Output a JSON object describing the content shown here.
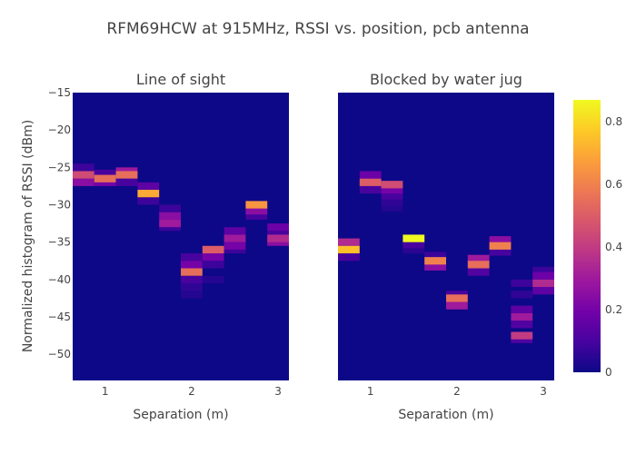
{
  "title": "RFM69HCW at 915MHz, RSSI vs. position, pcb antenna",
  "chart_data": {
    "type": "heatmap",
    "title": "RFM69HCW at 915MHz, RSSI vs. position, pcb antenna",
    "ylabel": "Normalized histogram of RSSI (dBm)",
    "y_ticks": [
      -15,
      -20,
      -25,
      -30,
      -35,
      -40,
      -45,
      -50
    ],
    "ylim": [
      -53.5,
      -15
    ],
    "colorbar": {
      "ticks": [
        "0",
        "0.2",
        "0.4",
        "0.6",
        "0.8"
      ],
      "range": [
        0,
        0.87
      ],
      "colorscale": "Plasma"
    },
    "panels": [
      {
        "subtitle": "Line of sight",
        "xlabel": "Separation (m)",
        "x_ticks": [
          "1",
          "2",
          "3"
        ],
        "xlim": [
          0.625,
          3.125
        ],
        "columns": [
          {
            "x": 0.75,
            "bins": [
              [
                -26,
                0.45
              ],
              [
                -27,
                0.25
              ],
              [
                -25,
                0.08
              ]
            ]
          },
          {
            "x": 1.0,
            "bins": [
              [
                -26.5,
                0.55
              ],
              [
                -27,
                0.2
              ],
              [
                -25.8,
                0.1
              ]
            ]
          },
          {
            "x": 1.25,
            "bins": [
              [
                -26,
                0.55
              ],
              [
                -25.5,
                0.3
              ],
              [
                -27,
                0.1
              ]
            ]
          },
          {
            "x": 1.5,
            "bins": [
              [
                -28.5,
                0.7
              ],
              [
                -27.5,
                0.15
              ],
              [
                -29.5,
                0.08
              ]
            ]
          },
          {
            "x": 1.75,
            "bins": [
              [
                -31.5,
                0.25
              ],
              [
                -32.5,
                0.3
              ],
              [
                -30.5,
                0.08
              ],
              [
                -33,
                0.08
              ]
            ]
          },
          {
            "x": 2.0,
            "bins": [
              [
                -39,
                0.55
              ],
              [
                -38,
                0.2
              ],
              [
                -37,
                0.1
              ],
              [
                -40,
                0.1
              ],
              [
                -41,
                0.06
              ],
              [
                -42,
                0.04
              ]
            ]
          },
          {
            "x": 2.25,
            "bins": [
              [
                -36,
                0.5
              ],
              [
                -37,
                0.2
              ],
              [
                -38,
                0.08
              ],
              [
                -40,
                0.04
              ]
            ]
          },
          {
            "x": 2.5,
            "bins": [
              [
                -34.5,
                0.3
              ],
              [
                -33.5,
                0.15
              ],
              [
                -35.5,
                0.2
              ],
              [
                -36,
                0.08
              ]
            ]
          },
          {
            "x": 2.75,
            "bins": [
              [
                -30,
                0.65
              ],
              [
                -30.8,
                0.25
              ],
              [
                -31.5,
                0.1
              ]
            ]
          },
          {
            "x": 3.0,
            "bins": [
              [
                -34.5,
                0.35
              ],
              [
                -33,
                0.18
              ],
              [
                -34,
                0.1
              ],
              [
                -35,
                0.25
              ]
            ]
          }
        ]
      },
      {
        "subtitle": "Blocked by water jug",
        "xlabel": "Separation (m)",
        "x_ticks": [
          "1",
          "2",
          "3"
        ],
        "xlim": [
          0.625,
          3.125
        ],
        "columns": [
          {
            "x": 0.75,
            "bins": [
              [
                -36,
                0.75
              ],
              [
                -35,
                0.35
              ],
              [
                -37,
                0.1
              ]
            ]
          },
          {
            "x": 1.0,
            "bins": [
              [
                -27,
                0.5
              ],
              [
                -26,
                0.18
              ],
              [
                -28,
                0.1
              ]
            ]
          },
          {
            "x": 1.25,
            "bins": [
              [
                -27.3,
                0.45
              ],
              [
                -28,
                0.2
              ],
              [
                -28.8,
                0.1
              ],
              [
                -29.6,
                0.06
              ],
              [
                -30.4,
                0.04
              ]
            ]
          },
          {
            "x": 1.5,
            "bins": [
              [
                -34.5,
                0.87
              ],
              [
                -35.3,
                0.1
              ],
              [
                -36,
                0.05
              ]
            ]
          },
          {
            "x": 1.75,
            "bins": [
              [
                -37.5,
                0.6
              ],
              [
                -38.3,
                0.25
              ],
              [
                -36.8,
                0.08
              ]
            ]
          },
          {
            "x": 2.0,
            "bins": [
              [
                -42.5,
                0.55
              ],
              [
                -43.5,
                0.3
              ],
              [
                -42,
                0.1
              ]
            ]
          },
          {
            "x": 2.25,
            "bins": [
              [
                -38,
                0.55
              ],
              [
                -37.2,
                0.3
              ],
              [
                -39,
                0.12
              ]
            ]
          },
          {
            "x": 2.5,
            "bins": [
              [
                -35.5,
                0.6
              ],
              [
                -34.7,
                0.25
              ],
              [
                -36.3,
                0.1
              ]
            ]
          },
          {
            "x": 2.75,
            "bins": [
              [
                -45,
                0.3
              ],
              [
                -47.5,
                0.4
              ],
              [
                -44,
                0.15
              ],
              [
                -46,
                0.12
              ],
              [
                -48,
                0.12
              ],
              [
                -40.5,
                0.08
              ],
              [
                -42,
                0.06
              ]
            ]
          },
          {
            "x": 3.0,
            "bins": [
              [
                -40.5,
                0.35
              ],
              [
                -39.5,
                0.18
              ],
              [
                -41.5,
                0.15
              ],
              [
                -38.8,
                0.08
              ]
            ]
          }
        ]
      }
    ]
  }
}
